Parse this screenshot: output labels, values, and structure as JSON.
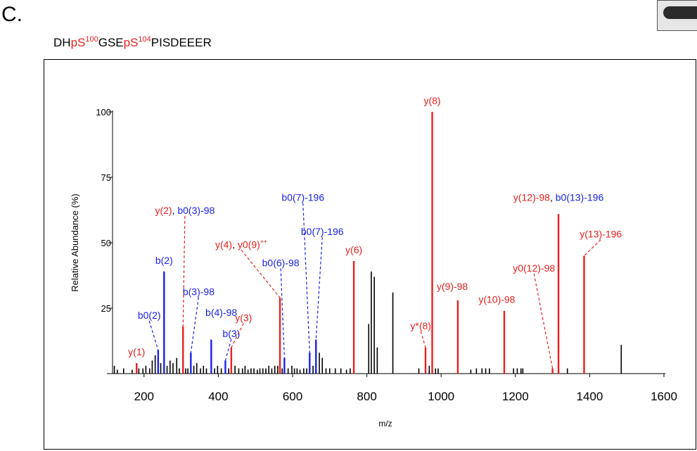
{
  "panel": {
    "letter": "C."
  },
  "peptide": {
    "parts": [
      {
        "text": "DH",
        "kind": "plain"
      },
      {
        "text": "pS",
        "kind": "phospho",
        "sup": "100"
      },
      {
        "text": "GSE",
        "kind": "plain"
      },
      {
        "text": "pS",
        "kind": "phospho",
        "sup": "104"
      },
      {
        "text": "PISDEEER",
        "kind": "plain"
      }
    ]
  },
  "colors": {
    "y_ion": "#e8201f",
    "b_ion": "#1a22e8",
    "other": "#000000"
  },
  "chart_data": {
    "type": "bar",
    "xlabel": "m/z",
    "ylabel": "Relative Abundance (%)",
    "xlim": [
      100,
      1600
    ],
    "ylim": [
      0,
      100
    ],
    "xticks": [
      200,
      400,
      600,
      800,
      1000,
      1200,
      1400,
      1600
    ],
    "yticks": [
      25,
      50,
      75,
      100
    ],
    "grid": false,
    "peaks": [
      {
        "mz": 120,
        "i": 3,
        "c": "other"
      },
      {
        "mz": 128,
        "i": 1.5,
        "c": "other"
      },
      {
        "mz": 145,
        "i": 2,
        "c": "other"
      },
      {
        "mz": 168,
        "i": 1.5,
        "c": "other"
      },
      {
        "mz": 180,
        "i": 4,
        "c": "y"
      },
      {
        "mz": 186,
        "i": 2,
        "c": "other"
      },
      {
        "mz": 197,
        "i": 2,
        "c": "other"
      },
      {
        "mz": 205,
        "i": 3,
        "c": "other"
      },
      {
        "mz": 215,
        "i": 2,
        "c": "other"
      },
      {
        "mz": 222,
        "i": 5,
        "c": "other"
      },
      {
        "mz": 230,
        "i": 7,
        "c": "other"
      },
      {
        "mz": 238,
        "i": 9,
        "c": "b"
      },
      {
        "mz": 245,
        "i": 4,
        "c": "other"
      },
      {
        "mz": 254,
        "i": 39,
        "c": "b"
      },
      {
        "mz": 262,
        "i": 3,
        "c": "other"
      },
      {
        "mz": 270,
        "i": 5,
        "c": "other"
      },
      {
        "mz": 278,
        "i": 4,
        "c": "other"
      },
      {
        "mz": 288,
        "i": 6,
        "c": "other"
      },
      {
        "mz": 295,
        "i": 2,
        "c": "other"
      },
      {
        "mz": 305,
        "i": 18,
        "c": "y"
      },
      {
        "mz": 312,
        "i": 2,
        "c": "other"
      },
      {
        "mz": 318,
        "i": 2,
        "c": "other"
      },
      {
        "mz": 326,
        "i": 8,
        "c": "b"
      },
      {
        "mz": 334,
        "i": 3,
        "c": "other"
      },
      {
        "mz": 342,
        "i": 4,
        "c": "other"
      },
      {
        "mz": 352,
        "i": 2,
        "c": "other"
      },
      {
        "mz": 360,
        "i": 3,
        "c": "other"
      },
      {
        "mz": 368,
        "i": 2,
        "c": "other"
      },
      {
        "mz": 381,
        "i": 13,
        "c": "b"
      },
      {
        "mz": 390,
        "i": 2,
        "c": "other"
      },
      {
        "mz": 398,
        "i": 3,
        "c": "other"
      },
      {
        "mz": 408,
        "i": 2,
        "c": "other"
      },
      {
        "mz": 419,
        "i": 5,
        "c": "b"
      },
      {
        "mz": 428,
        "i": 2,
        "c": "other"
      },
      {
        "mz": 435,
        "i": 10,
        "c": "y"
      },
      {
        "mz": 445,
        "i": 3,
        "c": "other"
      },
      {
        "mz": 455,
        "i": 2,
        "c": "other"
      },
      {
        "mz": 465,
        "i": 2,
        "c": "other"
      },
      {
        "mz": 472,
        "i": 3,
        "c": "other"
      },
      {
        "mz": 480,
        "i": 1.5,
        "c": "other"
      },
      {
        "mz": 488,
        "i": 2,
        "c": "other"
      },
      {
        "mz": 496,
        "i": 2,
        "c": "other"
      },
      {
        "mz": 505,
        "i": 1.5,
        "c": "other"
      },
      {
        "mz": 512,
        "i": 2,
        "c": "other"
      },
      {
        "mz": 520,
        "i": 2,
        "c": "other"
      },
      {
        "mz": 528,
        "i": 2,
        "c": "other"
      },
      {
        "mz": 536,
        "i": 3,
        "c": "other"
      },
      {
        "mz": 544,
        "i": 2,
        "c": "other"
      },
      {
        "mz": 552,
        "i": 3,
        "c": "other"
      },
      {
        "mz": 560,
        "i": 3,
        "c": "other"
      },
      {
        "mz": 566,
        "i": 29,
        "c": "y"
      },
      {
        "mz": 572,
        "i": 2,
        "c": "other"
      },
      {
        "mz": 578,
        "i": 6,
        "c": "b"
      },
      {
        "mz": 588,
        "i": 2,
        "c": "other"
      },
      {
        "mz": 598,
        "i": 3,
        "c": "other"
      },
      {
        "mz": 605,
        "i": 2,
        "c": "other"
      },
      {
        "mz": 612,
        "i": 2,
        "c": "other"
      },
      {
        "mz": 620,
        "i": 1.5,
        "c": "other"
      },
      {
        "mz": 630,
        "i": 2,
        "c": "other"
      },
      {
        "mz": 638,
        "i": 2,
        "c": "other"
      },
      {
        "mz": 646,
        "i": 8,
        "c": "b"
      },
      {
        "mz": 655,
        "i": 3,
        "c": "other"
      },
      {
        "mz": 663,
        "i": 13,
        "c": "b"
      },
      {
        "mz": 672,
        "i": 8,
        "c": "other"
      },
      {
        "mz": 680,
        "i": 6,
        "c": "other"
      },
      {
        "mz": 690,
        "i": 2,
        "c": "other"
      },
      {
        "mz": 700,
        "i": 2,
        "c": "other"
      },
      {
        "mz": 715,
        "i": 2,
        "c": "other"
      },
      {
        "mz": 730,
        "i": 2,
        "c": "other"
      },
      {
        "mz": 745,
        "i": 1.5,
        "c": "other"
      },
      {
        "mz": 755,
        "i": 2,
        "c": "other"
      },
      {
        "mz": 765,
        "i": 43,
        "c": "y"
      },
      {
        "mz": 805,
        "i": 19,
        "c": "other"
      },
      {
        "mz": 812,
        "i": 39,
        "c": "other"
      },
      {
        "mz": 820,
        "i": 37,
        "c": "other"
      },
      {
        "mz": 828,
        "i": 10,
        "c": "other"
      },
      {
        "mz": 870,
        "i": 31,
        "c": "other"
      },
      {
        "mz": 940,
        "i": 2,
        "c": "other"
      },
      {
        "mz": 958,
        "i": 10,
        "c": "y"
      },
      {
        "mz": 968,
        "i": 3,
        "c": "other"
      },
      {
        "mz": 976,
        "i": 100,
        "c": "y"
      },
      {
        "mz": 985,
        "i": 2,
        "c": "other"
      },
      {
        "mz": 992,
        "i": 2,
        "c": "other"
      },
      {
        "mz": 1045,
        "i": 28,
        "c": "y"
      },
      {
        "mz": 1080,
        "i": 1.5,
        "c": "other"
      },
      {
        "mz": 1095,
        "i": 2,
        "c": "other"
      },
      {
        "mz": 1110,
        "i": 2,
        "c": "other"
      },
      {
        "mz": 1120,
        "i": 2,
        "c": "other"
      },
      {
        "mz": 1130,
        "i": 2,
        "c": "other"
      },
      {
        "mz": 1170,
        "i": 24,
        "c": "y"
      },
      {
        "mz": 1195,
        "i": 2,
        "c": "other"
      },
      {
        "mz": 1205,
        "i": 2,
        "c": "other"
      },
      {
        "mz": 1215,
        "i": 2,
        "c": "other"
      },
      {
        "mz": 1220,
        "i": 2,
        "c": "other"
      },
      {
        "mz": 1300,
        "i": 2,
        "c": "y"
      },
      {
        "mz": 1316,
        "i": 61,
        "c": "y"
      },
      {
        "mz": 1340,
        "i": 2,
        "c": "other"
      },
      {
        "mz": 1385,
        "i": 45,
        "c": "y"
      },
      {
        "mz": 1485,
        "i": 11,
        "c": "other"
      }
    ],
    "annotations": [
      {
        "parts": [
          {
            "t": "y(1)",
            "c": "y"
          }
        ],
        "peak_mz": 180,
        "peak_i": 4,
        "label_mz": 180,
        "label_i": 7,
        "leader": false
      },
      {
        "parts": [
          {
            "t": "b0(2)",
            "c": "b"
          }
        ],
        "peak_mz": 238,
        "peak_i": 9,
        "label_mz": 214,
        "label_i": 21,
        "leader": true
      },
      {
        "parts": [
          {
            "t": "b(2)",
            "c": "b"
          }
        ],
        "peak_mz": 254,
        "peak_i": 39,
        "label_mz": 254,
        "label_i": 42,
        "leader": false
      },
      {
        "parts": [
          {
            "t": "y(2)",
            "c": "y"
          },
          {
            "t": ", ",
            "c": "other"
          },
          {
            "t": "b0(3)-98",
            "c": "b"
          }
        ],
        "peak_mz": 305,
        "peak_i": 18,
        "label_mz": 310,
        "label_i": 61,
        "leader": true
      },
      {
        "parts": [
          {
            "t": "b(3)-98",
            "c": "b"
          }
        ],
        "peak_mz": 326,
        "peak_i": 8,
        "label_mz": 347,
        "label_i": 30,
        "leader": true
      },
      {
        "parts": [
          {
            "t": "b(4)-98",
            "c": "b"
          }
        ],
        "peak_mz": 381,
        "peak_i": 13,
        "label_mz": 408,
        "label_i": 22,
        "leader": false
      },
      {
        "parts": [
          {
            "t": "b(3)",
            "c": "b"
          }
        ],
        "peak_mz": 419,
        "peak_i": 5,
        "label_mz": 435,
        "label_i": 14,
        "leader": true
      },
      {
        "parts": [
          {
            "t": "y(3)",
            "c": "y"
          }
        ],
        "peak_mz": 435,
        "peak_i": 10,
        "label_mz": 468,
        "label_i": 20,
        "leader": true
      },
      {
        "parts": [
          {
            "t": "y(4)",
            "c": "y"
          },
          {
            "t": ", ",
            "c": "other"
          },
          {
            "t": "y0(9)",
            "c": "y"
          },
          {
            "t": "++",
            "c": "y",
            "sup": true
          }
        ],
        "peak_mz": 566,
        "peak_i": 29,
        "label_mz": 462,
        "label_i": 48,
        "leader": true
      },
      {
        "parts": [
          {
            "t": "b0(6)-98",
            "c": "b"
          }
        ],
        "peak_mz": 578,
        "peak_i": 6,
        "label_mz": 568,
        "label_i": 41,
        "leader": true
      },
      {
        "parts": [
          {
            "t": "b0(7)-196",
            "c": "b"
          }
        ],
        "peak_mz": 646,
        "peak_i": 8,
        "label_mz": 628,
        "label_i": 66,
        "leader": true
      },
      {
        "parts": [
          {
            "t": "b0(7)-196",
            "c": "b"
          }
        ],
        "peak_mz": 663,
        "peak_i": 13,
        "label_mz": 680,
        "label_i": 53,
        "leader": true
      },
      {
        "parts": [
          {
            "t": "y(6)",
            "c": "y"
          }
        ],
        "peak_mz": 765,
        "peak_i": 43,
        "label_mz": 765,
        "label_i": 46,
        "leader": false
      },
      {
        "parts": [
          {
            "t": "y*(8)",
            "c": "y"
          }
        ],
        "peak_mz": 958,
        "peak_i": 10,
        "label_mz": 945,
        "label_i": 17,
        "leader": true
      },
      {
        "parts": [
          {
            "t": "y(8)",
            "c": "y"
          }
        ],
        "peak_mz": 976,
        "peak_i": 100,
        "label_mz": 976,
        "label_i": 103,
        "leader": false
      },
      {
        "parts": [
          {
            "t": "y(9)-98",
            "c": "y"
          }
        ],
        "peak_mz": 1045,
        "peak_i": 28,
        "label_mz": 1030,
        "label_i": 32,
        "leader": false
      },
      {
        "parts": [
          {
            "t": "y(10)-98",
            "c": "y"
          }
        ],
        "peak_mz": 1170,
        "peak_i": 24,
        "label_mz": 1150,
        "label_i": 27,
        "leader": false
      },
      {
        "parts": [
          {
            "t": "y0(12)-98",
            "c": "y"
          }
        ],
        "peak_mz": 1300,
        "peak_i": 2,
        "label_mz": 1250,
        "label_i": 39,
        "leader": true
      },
      {
        "parts": [
          {
            "t": "y(12)-98",
            "c": "y"
          },
          {
            "t": ", ",
            "c": "other"
          },
          {
            "t": "b0(13)-196",
            "c": "b"
          }
        ],
        "peak_mz": 1316,
        "peak_i": 61,
        "label_mz": 1316,
        "label_i": 66,
        "leader": false
      },
      {
        "parts": [
          {
            "t": "y(13)-196",
            "c": "y"
          }
        ],
        "peak_mz": 1385,
        "peak_i": 45,
        "label_mz": 1430,
        "label_i": 52,
        "leader": true
      }
    ]
  }
}
